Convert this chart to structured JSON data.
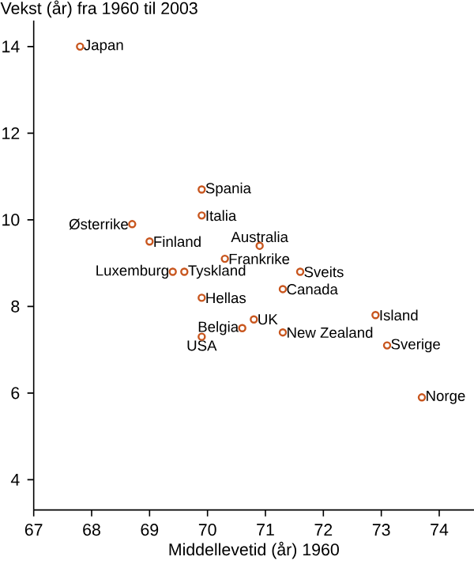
{
  "chart_data": {
    "type": "scatter",
    "ylabel": "Vekst (år) fra 1960 til 2003",
    "xlabel": "Middellevetid (år) 1960",
    "xlim": [
      67,
      74.6
    ],
    "ylim": [
      3.3,
      14.6
    ],
    "xticks": [
      67,
      68,
      69,
      70,
      71,
      72,
      73,
      74
    ],
    "yticks": [
      4,
      6,
      8,
      10,
      12,
      14
    ],
    "grid": false,
    "series": [
      {
        "color": "#c8561e",
        "x": [
          67.8,
          69.9,
          69.9,
          68.7,
          69.0,
          70.9,
          70.3,
          69.4,
          69.6,
          71.6,
          71.3,
          69.9,
          72.9,
          70.8,
          70.6,
          71.3,
          69.9,
          73.1,
          73.7
        ],
        "values": [
          14.0,
          10.7,
          10.1,
          9.9,
          9.5,
          9.4,
          9.1,
          8.8,
          8.8,
          8.8,
          8.4,
          8.2,
          7.8,
          7.7,
          7.5,
          7.4,
          7.3,
          7.1,
          5.9
        ]
      }
    ],
    "annotations": [
      {
        "text": "Japan",
        "x": 67.8,
        "y": 14.0
      },
      {
        "text": "Spania",
        "x": 69.9,
        "y": 10.7
      },
      {
        "text": "Italia",
        "x": 69.9,
        "y": 10.1
      },
      {
        "text": "Østerrike",
        "x": 68.7,
        "y": 9.9
      },
      {
        "text": "Finland",
        "x": 69.0,
        "y": 9.5
      },
      {
        "text": "Australia",
        "x": 70.9,
        "y": 9.4
      },
      {
        "text": "Frankrike",
        "x": 70.3,
        "y": 9.1
      },
      {
        "text": "Luxemburg",
        "x": 69.4,
        "y": 8.8
      },
      {
        "text": "Tyskland",
        "x": 69.6,
        "y": 8.8
      },
      {
        "text": "Sveits",
        "x": 71.6,
        "y": 8.8
      },
      {
        "text": "Canada",
        "x": 71.3,
        "y": 8.4
      },
      {
        "text": "Hellas",
        "x": 69.9,
        "y": 8.2
      },
      {
        "text": "Island",
        "x": 72.9,
        "y": 7.8
      },
      {
        "text": "UK",
        "x": 70.8,
        "y": 7.7
      },
      {
        "text": "Belgia",
        "x": 70.6,
        "y": 7.5
      },
      {
        "text": "New Zealand",
        "x": 71.3,
        "y": 7.4
      },
      {
        "text": "USA",
        "x": 69.9,
        "y": 7.3
      },
      {
        "text": "Sverige",
        "x": 73.1,
        "y": 7.1
      },
      {
        "text": "Norge",
        "x": 73.7,
        "y": 5.9
      }
    ]
  }
}
